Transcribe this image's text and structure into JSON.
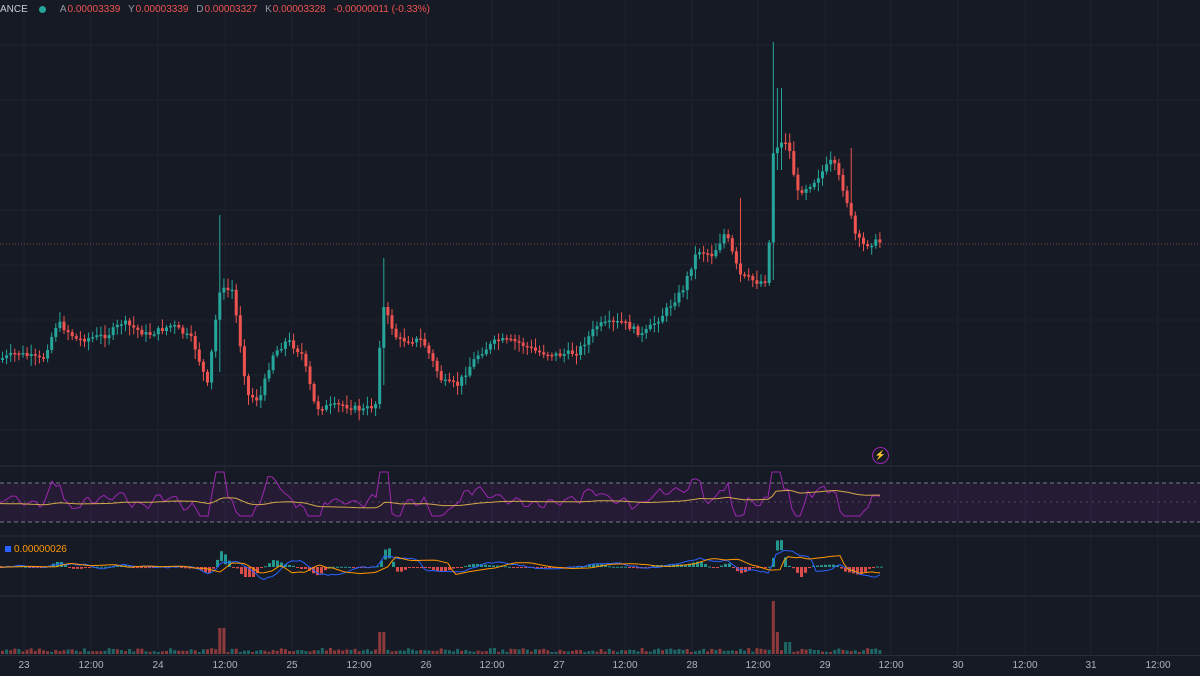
{
  "legend": {
    "symbol": "ANCE",
    "items": [
      {
        "key": "A",
        "value": "0.00003339"
      },
      {
        "key": "Y",
        "value": "0.00003339"
      },
      {
        "key": "D",
        "value": "0.00003327"
      },
      {
        "key": "K",
        "value": "0.00003328"
      }
    ],
    "change": "-0.00000011 (-0.33%)"
  },
  "macd": {
    "value": "0.00000026"
  },
  "time_axis": [
    "23",
    "12:00",
    "24",
    "12:00",
    "25",
    "12:00",
    "26",
    "12:00",
    "27",
    "12:00",
    "28",
    "12:00",
    "29",
    "12:00",
    "30",
    "12:00",
    "31",
    "12:00"
  ],
  "colors": {
    "up": "#26a69a",
    "down": "#ef5350",
    "background": "#161a25",
    "rsi": "#9c27b0",
    "rsi_ma": "#d4a84b",
    "macd_line": "#2962ff",
    "signal_line": "#ff9800"
  },
  "icons": [
    "lightning-icon"
  ],
  "chart_data": {
    "type": "candlestick",
    "price_seed": [
      3.24e-05,
      3.26e-05,
      3.33e-05,
      3.38e-05,
      3.38e-05,
      3.35e-05
    ],
    "last_price": 3.328e-05
  }
}
